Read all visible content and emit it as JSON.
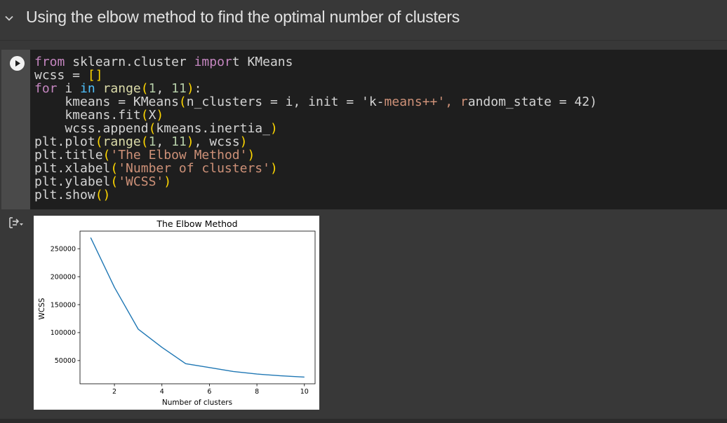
{
  "section": {
    "title": "Using the elbow method to find the optimal number of clusters",
    "toggle_icon": "chevron-down-icon"
  },
  "cell": {
    "run_icon": "play-icon",
    "output_icon": "output-toggle-icon",
    "code_lines": [
      "from sklearn.cluster import KMeans",
      "wcss = []",
      "for i in range(1, 11):",
      "    kmeans = KMeans(n_clusters = i, init = 'k-means++', random_state = 42)",
      "    kmeans.fit(X)",
      "    wcss.append(kmeans.inertia_)",
      "plt.plot(range(1, 11), wcss)",
      "plt.title('The Elbow Method')",
      "plt.xlabel('Number of clusters')",
      "plt.ylabel('WCSS')",
      "plt.show()"
    ]
  },
  "colors": {
    "line": "#1f77b4",
    "keyword": "#c586c0",
    "string": "#ce9178",
    "number": "#b5cea8"
  },
  "chart_data": {
    "type": "line",
    "title": "The Elbow Method",
    "xlabel": "Number of clusters",
    "ylabel": "WCSS",
    "x": [
      1,
      2,
      3,
      4,
      5,
      6,
      7,
      8,
      9,
      10
    ],
    "series": [
      {
        "values": [
          269900,
          181000,
          106300,
          73700,
          44400,
          37500,
          30500,
          25900,
          22800,
          20500
        ]
      }
    ],
    "xlim": [
      0.55,
      10.45
    ],
    "ylim": [
      8500,
      281500
    ],
    "xticks": [
      2,
      4,
      6,
      8,
      10
    ],
    "yticks": [
      50000,
      100000,
      150000,
      200000,
      250000
    ],
    "xtick_labels": [
      "2",
      "4",
      "6",
      "8",
      "10"
    ],
    "ytick_labels": [
      "50000",
      "100000",
      "150000",
      "200000",
      "250000"
    ],
    "grid": false,
    "legend": "none"
  }
}
